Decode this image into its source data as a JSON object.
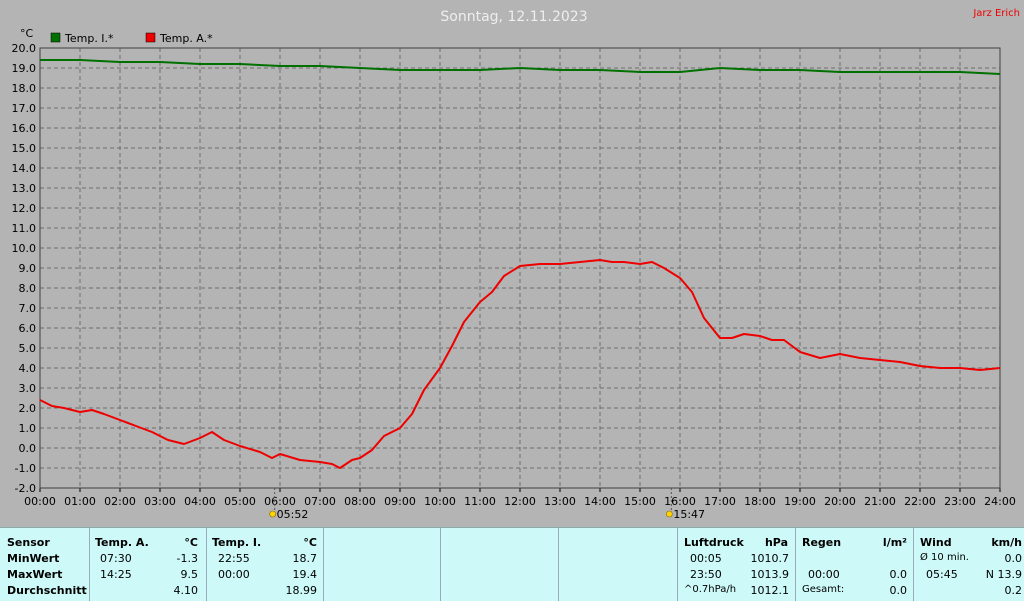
{
  "header": {
    "title": "Sonntag, 12.11.2023",
    "author": "Jarz Erich"
  },
  "colors": {
    "background": "#b4b4b4",
    "plot_area": "#b4b4b4",
    "grid": "#707070",
    "indoor_series": "#007000",
    "outdoor_series": "#ee0000",
    "table_bg": "#cdfaf8",
    "author_text": "#ee0000"
  },
  "chart_data": {
    "type": "line",
    "ylabel": "°C",
    "ylim": [
      -2.0,
      20.0
    ],
    "yticks": [
      "20.0",
      "19.0",
      "18.0",
      "17.0",
      "16.0",
      "15.0",
      "14.0",
      "13.0",
      "12.0",
      "11.0",
      "10.0",
      "9.0",
      "8.0",
      "7.0",
      "6.0",
      "5.0",
      "4.0",
      "3.0",
      "2.0",
      "1.0",
      "0.0",
      "-1.0",
      "-2.0"
    ],
    "xlim_hours": [
      0,
      24
    ],
    "xticks": [
      "00:00",
      "01:00",
      "02:00",
      "03:00",
      "04:00",
      "05:00",
      "06:00",
      "07:00",
      "08:00",
      "09:00",
      "10:00",
      "11:00",
      "12:00",
      "13:00",
      "14:00",
      "15:00",
      "16:00",
      "17:00",
      "18:00",
      "19:00",
      "20:00",
      "21:00",
      "22:00",
      "23:00",
      "24:00"
    ],
    "grid": true,
    "legend_position": "top-left",
    "sunrise": "05:52",
    "sunset": "15:47",
    "series": [
      {
        "name": "Temp. I.*",
        "x": [
          0,
          1,
          2,
          3,
          4,
          5,
          6,
          7,
          8,
          9,
          10,
          11,
          12,
          13,
          14,
          15,
          16,
          16.5,
          17,
          18,
          19,
          20,
          21,
          22,
          23,
          24
        ],
        "values": [
          19.4,
          19.4,
          19.3,
          19.3,
          19.2,
          19.2,
          19.1,
          19.1,
          19.0,
          18.9,
          18.9,
          18.9,
          19.0,
          18.9,
          18.9,
          18.8,
          18.8,
          18.9,
          19.0,
          18.9,
          18.9,
          18.8,
          18.8,
          18.8,
          18.8,
          18.7
        ]
      },
      {
        "name": "Temp. A.*",
        "x": [
          0,
          0.3,
          0.6,
          1.0,
          1.3,
          1.6,
          2.0,
          2.4,
          2.8,
          3.2,
          3.6,
          4.0,
          4.3,
          4.6,
          5.0,
          5.5,
          5.8,
          6.0,
          6.5,
          7.0,
          7.3,
          7.5,
          7.8,
          8.0,
          8.3,
          8.6,
          9.0,
          9.3,
          9.6,
          10.0,
          10.3,
          10.6,
          11.0,
          11.3,
          11.6,
          12.0,
          12.5,
          13.0,
          13.5,
          14.0,
          14.3,
          14.6,
          15.0,
          15.3,
          15.6,
          16.0,
          16.3,
          16.6,
          17.0,
          17.3,
          17.6,
          18.0,
          18.3,
          18.6,
          19.0,
          19.5,
          20.0,
          20.5,
          21.0,
          21.5,
          22.0,
          22.5,
          23.0,
          23.5,
          24.0
        ],
        "values": [
          2.4,
          2.1,
          2.0,
          1.8,
          1.9,
          1.7,
          1.4,
          1.1,
          0.8,
          0.4,
          0.2,
          0.5,
          0.8,
          0.4,
          0.1,
          -0.2,
          -0.5,
          -0.3,
          -0.6,
          -0.7,
          -0.8,
          -1.0,
          -0.6,
          -0.5,
          -0.1,
          0.6,
          1.0,
          1.7,
          2.9,
          4.0,
          5.1,
          6.3,
          7.3,
          7.8,
          8.6,
          9.1,
          9.2,
          9.2,
          9.3,
          9.4,
          9.3,
          9.3,
          9.2,
          9.3,
          9.0,
          8.5,
          7.8,
          6.5,
          5.5,
          5.5,
          5.7,
          5.6,
          5.4,
          5.4,
          4.8,
          4.5,
          4.7,
          4.5,
          4.4,
          4.3,
          4.1,
          4.0,
          4.0,
          3.9,
          4.0
        ]
      }
    ]
  },
  "stats": {
    "sensor_header": "Sensor",
    "rows": [
      "MinWert",
      "MaxWert",
      "Durchschnitt"
    ],
    "temp_a": {
      "label": "Temp. A.",
      "unit": "°C",
      "min_time": "07:30",
      "min": "-1.3",
      "max_time": "14:25",
      "max": "9.5",
      "avg": "4.10"
    },
    "temp_i": {
      "label": "Temp. I.",
      "unit": "°C",
      "min_time": "22:55",
      "min": "18.7",
      "max_time": "00:00",
      "max": "19.4",
      "avg": "18.99"
    },
    "pressure": {
      "label": "Luftdruck",
      "unit": "hPa",
      "min_time": "00:05",
      "min": "1010.7",
      "max_time": "23:50",
      "max": "1013.9",
      "trend": "^0.7hPa/h",
      "avg": "1012.1"
    },
    "rain": {
      "label": "Regen",
      "unit": "l/m²",
      "max_time": "00:00",
      "max": "0.0",
      "total_label": "Gesamt:",
      "total": "0.0"
    },
    "wind": {
      "label": "Wind",
      "unit": "km/h",
      "min_label": "Ø 10 min.",
      "min": "0.0",
      "max_time": "05:45",
      "max": "N 13.9",
      "avg": "0.2"
    }
  }
}
